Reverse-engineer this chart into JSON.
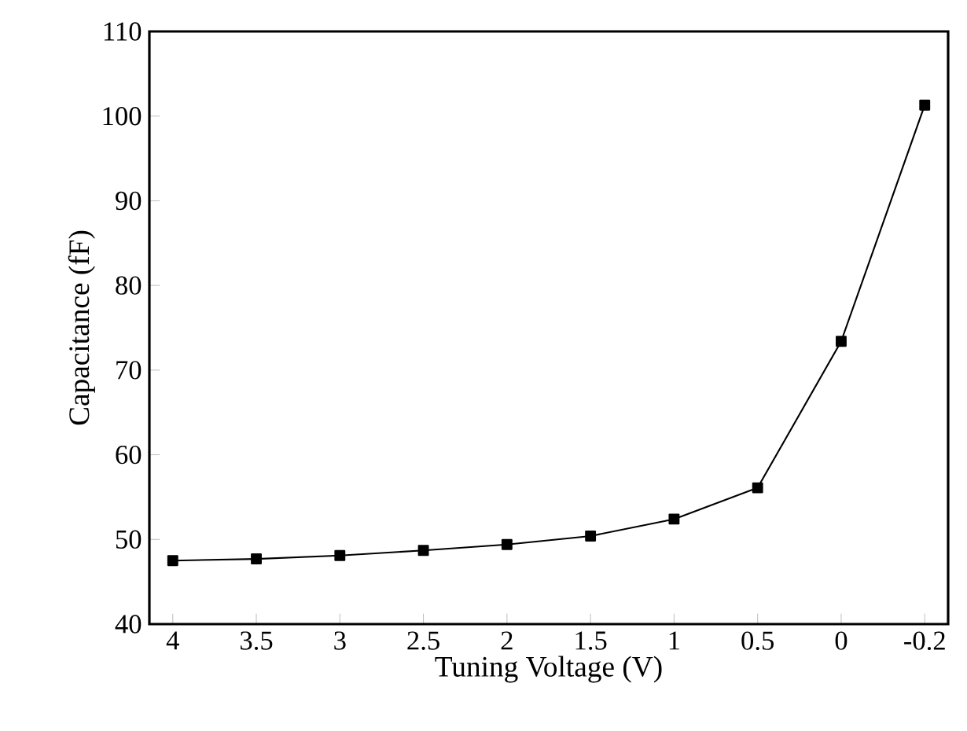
{
  "chart_data": {
    "type": "line",
    "xlabel": "Tuning Voltage (V)",
    "ylabel": "Capacitance (fF)",
    "categories": [
      "4",
      "3.5",
      "3",
      "2.5",
      "2",
      "1.5",
      "1",
      "0.5",
      "0",
      "-0.2"
    ],
    "series": [
      {
        "color": "#000000",
        "values": [
          47.5,
          47.7,
          48.1,
          48.7,
          49.4,
          50.4,
          52.4,
          56.1,
          73.4,
          101.3
        ]
      }
    ],
    "ylim": [
      40,
      110
    ],
    "yticks": [
      40,
      50,
      60,
      70,
      80,
      90,
      100,
      110
    ],
    "marker": "square",
    "line_style": "solid"
  }
}
